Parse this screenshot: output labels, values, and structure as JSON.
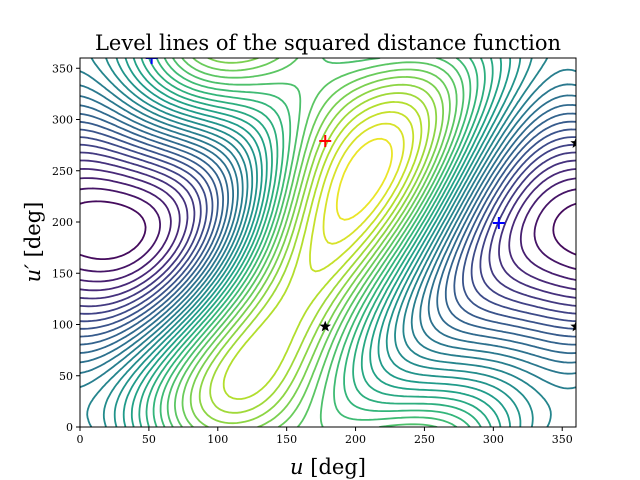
{
  "chart_data": {
    "type": "contour",
    "title": "Level lines of the squared distance function",
    "xlabel": "u [deg]",
    "ylabel": "u′ [deg]",
    "xlim": [
      0,
      360
    ],
    "ylim": [
      0,
      360
    ],
    "x_ticks": [
      "0",
      "50",
      "100",
      "150",
      "200",
      "250",
      "300",
      "350"
    ],
    "y_ticks": [
      "0",
      "50",
      "100",
      "150",
      "200",
      "250",
      "300",
      "350"
    ],
    "colormap": "viridis",
    "grid": false,
    "markers": [
      {
        "kind": "plus",
        "color": "#ff0000",
        "x": 178,
        "y": 279
      },
      {
        "kind": "plus",
        "color": "#0000ff",
        "x": 304,
        "y": 199
      },
      {
        "kind": "plus",
        "color": "#0000ff",
        "x": 52,
        "y": 360
      },
      {
        "kind": "star",
        "color": "#000000",
        "x": 178,
        "y": 98
      },
      {
        "kind": "star",
        "color": "#000000",
        "x": 360,
        "y": 277
      },
      {
        "kind": "star",
        "color": "#000000",
        "x": 360,
        "y": 98
      }
    ]
  }
}
